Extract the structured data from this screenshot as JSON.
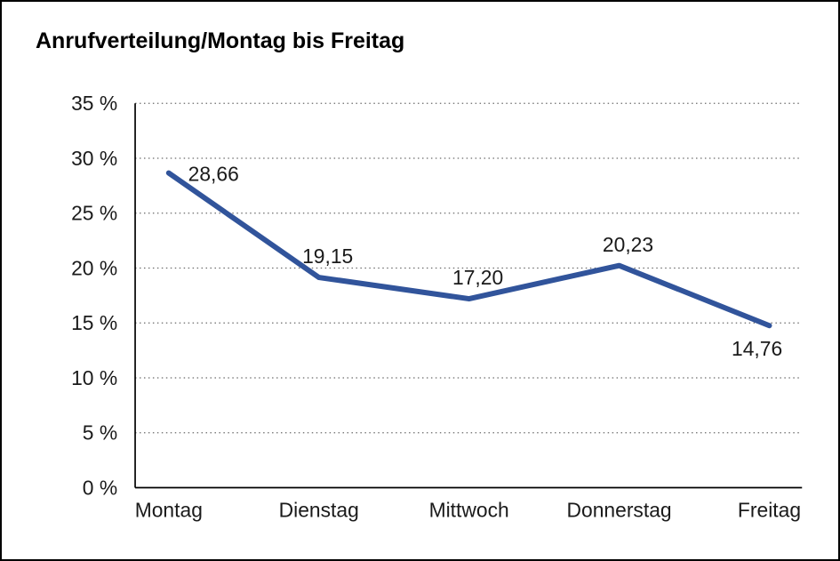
{
  "chart_data": {
    "type": "line",
    "title": "Anrufverteilung/Montag bis Freitag",
    "categories": [
      "Montag",
      "Dienstag",
      "Mittwoch",
      "Donnerstag",
      "Freitag"
    ],
    "values": [
      28.66,
      19.15,
      17.2,
      20.23,
      14.76
    ],
    "value_labels": [
      "28,66",
      "19,15",
      "17,20",
      "20,23",
      "14,76"
    ],
    "xlabel": "",
    "ylabel": "",
    "ylim": [
      0,
      35
    ],
    "ytick_values": [
      0,
      5,
      10,
      15,
      20,
      25,
      30,
      35
    ],
    "ytick_labels": [
      "0 %",
      "5 %",
      "10 %",
      "15 %",
      "20 %",
      "25 %",
      "30 %",
      "35 %"
    ],
    "grid": "dotted-horizontal",
    "legend": "none",
    "line_color": "#31549B",
    "axis_color": "#000000",
    "gridline_color": "#6b6b6b",
    "label_positions": [
      "right",
      "above",
      "above",
      "above",
      "below"
    ]
  }
}
